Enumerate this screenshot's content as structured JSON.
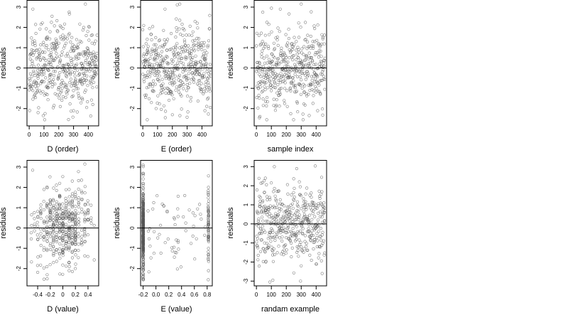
{
  "figure": {
    "background": "#ffffff",
    "point_color": "#555555",
    "line_color": "#000000"
  },
  "chart_data": [
    {
      "type": "scatter",
      "xlabel": "D (order)",
      "ylabel": "residuals",
      "xlim": [
        -15,
        470
      ],
      "ylim": [
        -2.85,
        3.35
      ],
      "xticks": [
        0,
        100,
        200,
        300,
        400
      ],
      "xtick_labels": [
        "0",
        "100",
        "200",
        "300",
        "400"
      ],
      "yticks": [
        -2,
        -1,
        0,
        1,
        2,
        3
      ],
      "ytick_labels": [
        "-2",
        "-1",
        "0",
        "1",
        "2",
        "3"
      ],
      "hline": 0,
      "n_points": 460,
      "seed": 11,
      "x": {
        "kind": "sequence",
        "min": 0,
        "max": 459
      },
      "y": {
        "kind": "normal",
        "sd": 0.95,
        "min": -2.55,
        "max": 3.2
      },
      "fixed": [
        [
          25,
          2.9
        ],
        [
          380,
          3.15
        ],
        [
          150,
          2.25
        ],
        [
          300,
          -2.1
        ],
        [
          95,
          -2.35
        ],
        [
          60,
          -2.2
        ],
        [
          430,
          -1.8
        ]
      ]
    },
    {
      "type": "scatter",
      "xlabel": "E (order)",
      "ylabel": "residuals",
      "xlim": [
        -15,
        470
      ],
      "ylim": [
        -2.85,
        3.35
      ],
      "xticks": [
        0,
        100,
        200,
        300,
        400
      ],
      "xtick_labels": [
        "0",
        "100",
        "200",
        "300",
        "400"
      ],
      "yticks": [
        -2,
        -1,
        0,
        1,
        2,
        3
      ],
      "ytick_labels": [
        "-2",
        "-1",
        "0",
        "1",
        "2",
        "3"
      ],
      "hline": 0,
      "n_points": 460,
      "seed": 23,
      "x": {
        "kind": "sequence",
        "min": 0,
        "max": 459
      },
      "y": {
        "kind": "normal",
        "sd": 0.95,
        "min": -2.55,
        "max": 3.2
      },
      "fixed": [
        [
          250,
          3.15
        ],
        [
          150,
          2.9
        ],
        [
          250,
          2.35
        ],
        [
          200,
          -2.3
        ],
        [
          420,
          -2.1
        ],
        [
          30,
          -2.55
        ],
        [
          90,
          -2.0
        ]
      ]
    },
    {
      "type": "scatter",
      "xlabel": "sample index",
      "ylabel": "residuals",
      "xlim": [
        -15,
        470
      ],
      "ylim": [
        -2.85,
        3.35
      ],
      "xticks": [
        0,
        100,
        200,
        300,
        400
      ],
      "xtick_labels": [
        "0",
        "100",
        "200",
        "300",
        "400"
      ],
      "yticks": [
        -2,
        -1,
        0,
        1,
        2,
        3
      ],
      "ytick_labels": [
        "-2",
        "-1",
        "0",
        "1",
        "2",
        "3"
      ],
      "hline": 0,
      "n_points": 460,
      "seed": 37,
      "x": {
        "kind": "sequence",
        "min": 0,
        "max": 459
      },
      "y": {
        "kind": "normal",
        "sd": 0.95,
        "min": -2.55,
        "max": 3.2
      },
      "fixed": [
        [
          300,
          3.15
        ],
        [
          160,
          2.9
        ],
        [
          70,
          2.25
        ],
        [
          230,
          -2.25
        ],
        [
          410,
          -2.1
        ],
        [
          20,
          -2.45
        ],
        [
          130,
          -1.9
        ]
      ]
    },
    {
      "type": "scatter",
      "xlabel": "D (value)",
      "ylabel": "residuals",
      "xlim": [
        -0.57,
        0.57
      ],
      "ylim": [
        -2.85,
        3.35
      ],
      "xticks": [
        -0.4,
        -0.2,
        0,
        0.2,
        0.4
      ],
      "xtick_labels": [
        "-0.4",
        "-0.2",
        "0",
        "0.2",
        "0.4"
      ],
      "yticks": [
        -2,
        -1,
        0,
        1,
        2,
        3
      ],
      "ytick_labels": [
        "-2",
        "-1",
        "0",
        "1",
        "2",
        "3"
      ],
      "hline": 0,
      "n_points": 460,
      "seed": 51,
      "x": {
        "kind": "levels",
        "values": [
          -0.5,
          -0.45,
          -0.4,
          -0.35,
          -0.3,
          -0.25,
          -0.2,
          -0.15,
          -0.1,
          -0.05,
          0,
          0.05,
          0.1,
          0.15,
          0.2,
          0.25,
          0.3,
          0.35,
          0.4,
          0.45,
          0.5
        ],
        "weights": [
          1,
          1,
          2,
          2,
          4,
          5,
          6,
          6,
          6,
          7,
          7,
          7,
          8,
          8,
          6,
          5,
          4,
          3,
          2,
          1,
          1
        ],
        "jitter": 0.004
      },
      "y": {
        "kind": "normal",
        "sd": 0.95,
        "min": -2.55,
        "max": 3.2
      },
      "fixed": [
        [
          -0.48,
          2.85
        ],
        [
          0.35,
          3.15
        ],
        [
          -0.25,
          -2.5
        ],
        [
          -0.25,
          -2.3
        ],
        [
          0.1,
          -2.1
        ],
        [
          -0.05,
          2.2
        ],
        [
          0.1,
          1.9
        ]
      ]
    },
    {
      "type": "scatter",
      "xlabel": "E (value)",
      "ylabel": "residuals",
      "xlim": [
        -0.24,
        0.88
      ],
      "ylim": [
        -2.85,
        3.35
      ],
      "xticks": [
        -0.2,
        0,
        0.2,
        0.4,
        0.6,
        0.8
      ],
      "xtick_labels": [
        "-0.2",
        "0.0",
        "0.2",
        "0.4",
        "0.6",
        "0.8"
      ],
      "yticks": [
        -2,
        -1,
        0,
        1,
        2,
        3
      ],
      "ytick_labels": [
        "-2",
        "-1",
        "0",
        "1",
        "2",
        "3"
      ],
      "hline": 0,
      "n_points": 460,
      "seed": 67,
      "x": {
        "kind": "mixture",
        "components": [
          {
            "value": -0.2,
            "weight": 360,
            "jitter": 0.004
          },
          {
            "value": 0.82,
            "weight": 50,
            "jitter": 0.004
          },
          {
            "min": -0.15,
            "max": 0.78,
            "weight": 50
          }
        ]
      },
      "y": {
        "kind": "normal",
        "sd": 0.95,
        "min": -2.55,
        "max": 3.2
      },
      "fixed": [
        [
          -0.2,
          3.1
        ],
        [
          -0.2,
          -2.5
        ],
        [
          0.82,
          2.0
        ],
        [
          0.82,
          -2.1
        ],
        [
          0.45,
          1.6
        ],
        [
          0.12,
          1.1
        ],
        [
          0.3,
          -1.2
        ]
      ]
    },
    {
      "type": "scatter",
      "xlabel": "randam example",
      "ylabel": "residuals",
      "xlim": [
        -15,
        470
      ],
      "ylim": [
        -3.25,
        3.35
      ],
      "xticks": [
        0,
        100,
        200,
        300,
        400
      ],
      "xtick_labels": [
        "0",
        "100",
        "200",
        "300",
        "400"
      ],
      "yticks": [
        -3,
        -2,
        -1,
        0,
        1,
        2,
        3
      ],
      "ytick_labels": [
        "-3",
        "-2",
        "-1",
        "0",
        "1",
        "2",
        "3"
      ],
      "hline": 0,
      "n_points": 460,
      "seed": 83,
      "x": {
        "kind": "sequence",
        "min": 0,
        "max": 459
      },
      "y": {
        "kind": "normal",
        "sd": 1.05,
        "min": -3.0,
        "max": 3.1
      },
      "fixed": [
        [
          120,
          3.0
        ],
        [
          270,
          2.9
        ],
        [
          110,
          -2.95
        ],
        [
          90,
          -3.05
        ],
        [
          300,
          -2.2
        ],
        [
          440,
          -2.6
        ],
        [
          60,
          2.4
        ]
      ]
    }
  ]
}
